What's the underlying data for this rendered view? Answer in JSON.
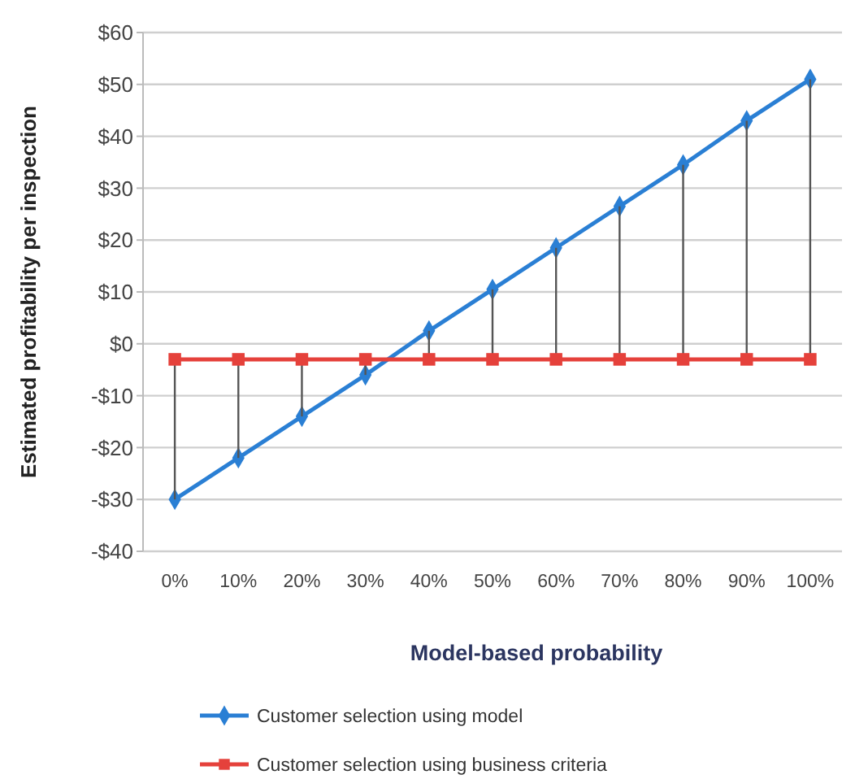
{
  "chart_data": {
    "type": "line",
    "xlabel": "Model-based probability",
    "ylabel": "Estimated profitability per inspection",
    "categories": [
      "0%",
      "10%",
      "20%",
      "30%",
      "40%",
      "50%",
      "60%",
      "70%",
      "80%",
      "90%",
      "100%"
    ],
    "ylim": [
      -40,
      60
    ],
    "yticks": [
      {
        "value": -40,
        "label": "-$40"
      },
      {
        "value": -30,
        "label": "-$30"
      },
      {
        "value": -20,
        "label": "-$20"
      },
      {
        "value": -10,
        "label": "-$10"
      },
      {
        "value": 0,
        "label": "$0"
      },
      {
        "value": 10,
        "label": "$10"
      },
      {
        "value": 20,
        "label": "$20"
      },
      {
        "value": 30,
        "label": "$30"
      },
      {
        "value": 40,
        "label": "$40"
      },
      {
        "value": 50,
        "label": "$50"
      },
      {
        "value": 60,
        "label": "$60"
      }
    ],
    "grid": "y",
    "legend": "bottom",
    "line_style": "solid",
    "series": [
      {
        "name": "Customer selection using model",
        "color": "#2a7fd4",
        "marker": "diamond",
        "values": [
          -30,
          -22,
          -14,
          -6,
          2.5,
          10.5,
          18.5,
          26.5,
          34.5,
          43,
          51
        ]
      },
      {
        "name": "Customer selection using business criteria",
        "color": "#e5413b",
        "marker": "square",
        "values": [
          -3,
          -3,
          -3,
          -3,
          -3,
          -3,
          -3,
          -3,
          -3,
          -3,
          -3
        ],
        "errors": [
          [
            -30,
            -3
          ],
          [
            -22,
            -3
          ],
          [
            -14,
            -3
          ],
          [
            -6,
            -3
          ],
          [
            -3,
            2.5
          ],
          [
            -3,
            10.5
          ],
          [
            -3,
            18.5
          ],
          [
            -3,
            26.5
          ],
          [
            -3,
            34.5
          ],
          [
            -3,
            43
          ],
          [
            -3,
            51
          ]
        ]
      }
    ]
  }
}
